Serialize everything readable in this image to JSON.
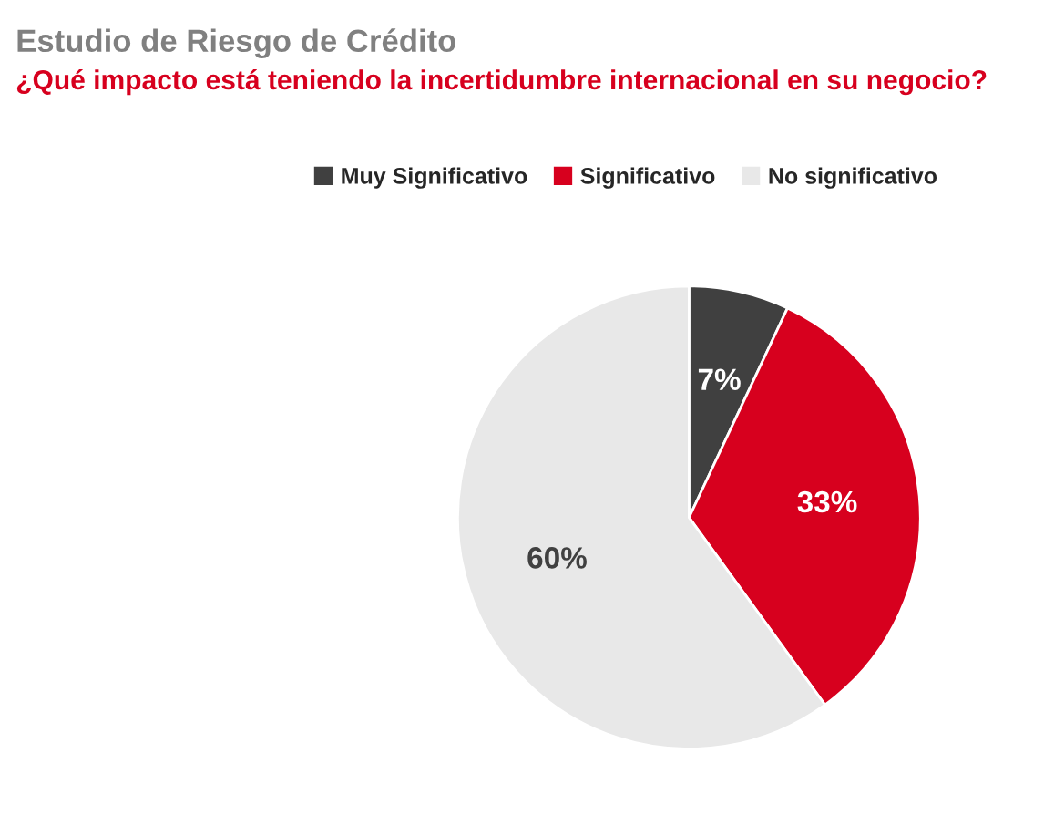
{
  "chart_data": {
    "type": "pie",
    "title": "Estudio de Riesgo de Crédito",
    "subtitle": "¿Qué impacto está teniendo la incertidumbre internacional en su negocio?",
    "categories": [
      "Muy Significativo",
      "Significativo",
      "No significativo"
    ],
    "values": [
      7,
      33,
      60
    ],
    "colors": [
      "#404040",
      "#d7001e",
      "#e8e8e8"
    ],
    "value_labels": [
      "7%",
      "33%",
      "60%"
    ],
    "legend": "top"
  }
}
